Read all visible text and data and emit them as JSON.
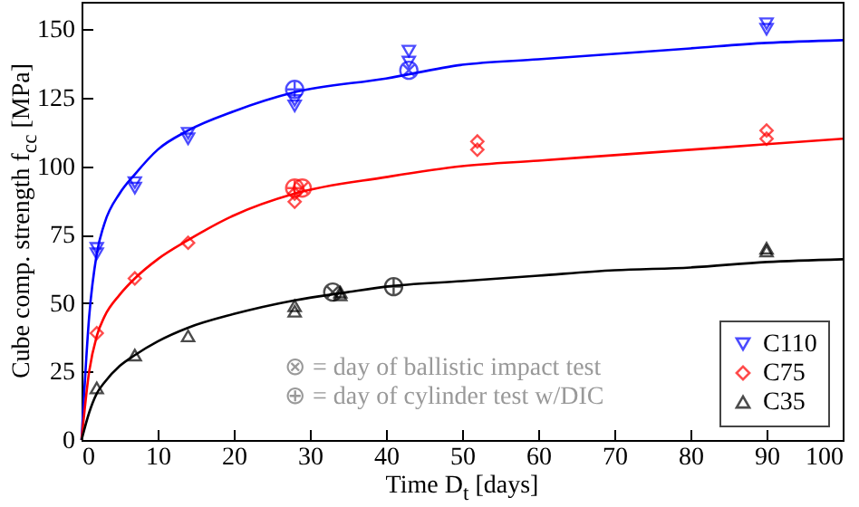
{
  "chart_data": {
    "type": "scatter",
    "xlabel": "Time D$_{t}$ [days]",
    "ylabel": "Cube comp. strength f$_{cc}$ [MPa]",
    "xlim": [
      0,
      100
    ],
    "xticks": [
      0,
      10,
      20,
      30,
      40,
      50,
      60,
      70,
      80,
      90,
      100
    ],
    "ylim": [
      0,
      160
    ],
    "yticks": [
      0,
      25,
      50,
      75,
      100,
      125,
      150
    ],
    "grid": false,
    "legend": "bottom right",
    "annotations": [
      "⊗ = day of ballistic impact test",
      "⊕ = day of cylinder test w/DIC"
    ],
    "series": [
      {
        "name": "C110",
        "type": "scatter",
        "marker": "triangle-down",
        "color": "#0000ff",
        "x": [
          2,
          2,
          7,
          7,
          14,
          14,
          28,
          28,
          43,
          43,
          90,
          90
        ],
        "values": [
          68,
          70,
          92,
          94,
          110,
          112,
          122,
          124,
          138,
          142,
          150,
          152
        ]
      },
      {
        "name": "C75",
        "type": "scatter",
        "marker": "diamond",
        "color": "#ff0000",
        "x": [
          2,
          7,
          14,
          28,
          28,
          52,
          52,
          90,
          90
        ],
        "values": [
          39,
          59,
          72,
          87,
          90,
          106,
          109,
          110,
          113
        ]
      },
      {
        "name": "C35",
        "type": "scatter",
        "marker": "triangle-up",
        "color": "#000000",
        "x": [
          2,
          7,
          14,
          28,
          28,
          34,
          34,
          90,
          90
        ],
        "values": [
          19,
          31,
          38,
          47,
          49,
          53,
          54,
          69,
          70
        ]
      },
      {
        "type": "scatter",
        "marker": "cross",
        "color": "#0000ff",
        "x": [
          43
        ],
        "values": [
          135
        ]
      },
      {
        "type": "scatter",
        "marker": "cross",
        "color": "#ff0000",
        "x": [
          29
        ],
        "values": [
          92
        ]
      },
      {
        "type": "scatter",
        "marker": "cross",
        "color": "#000000",
        "x": [
          33
        ],
        "values": [
          54
        ]
      },
      {
        "type": "scatter",
        "color": "#0000ff",
        "x": [
          28
        ],
        "values": [
          128
        ]
      },
      {
        "type": "scatter",
        "color": "#ff0000",
        "x": [
          28
        ],
        "values": [
          92
        ]
      },
      {
        "type": "scatter",
        "color": "#000000",
        "x": [
          41
        ],
        "values": [
          56
        ]
      },
      {
        "type": "line",
        "color": "#0000ff",
        "x": [
          0,
          1,
          2,
          3,
          5,
          7,
          10,
          14,
          20,
          28,
          40,
          50,
          60,
          70,
          80,
          90,
          100
        ],
        "values": [
          0,
          45,
          68,
          79,
          90,
          97,
          106,
          113,
          120,
          127,
          132,
          137,
          139,
          141,
          143,
          145,
          146
        ]
      },
      {
        "type": "line",
        "color": "#ff0000",
        "x": [
          0,
          1,
          2,
          3,
          5,
          7,
          10,
          14,
          20,
          28,
          40,
          50,
          60,
          70,
          80,
          90,
          100
        ],
        "values": [
          0,
          25,
          38,
          45,
          53,
          59,
          66,
          73,
          82,
          90,
          96,
          100,
          102,
          104,
          106,
          108,
          110
        ]
      },
      {
        "type": "line",
        "color": "#000000",
        "x": [
          0,
          1,
          2,
          3,
          5,
          7,
          10,
          14,
          20,
          28,
          35,
          40,
          50,
          60,
          70,
          80,
          90,
          100
        ],
        "values": [
          0,
          10,
          17,
          21,
          27,
          31,
          36,
          41,
          46,
          51,
          54,
          56,
          58,
          60,
          62,
          63,
          65,
          66
        ]
      }
    ]
  }
}
